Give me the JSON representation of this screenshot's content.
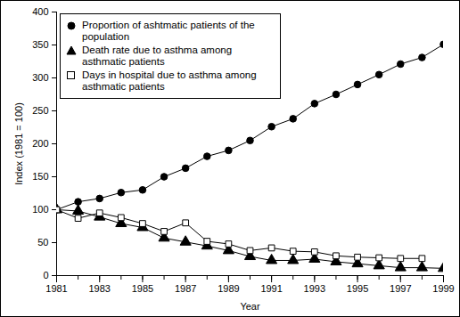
{
  "chart_data": {
    "type": "line",
    "x_label": "Year",
    "y_label": "Index (1981 = 100)",
    "x": [
      1981,
      1982,
      1983,
      1984,
      1985,
      1986,
      1987,
      1988,
      1989,
      1990,
      1991,
      1992,
      1993,
      1994,
      1995,
      1996,
      1997,
      1998,
      1999
    ],
    "xlim": [
      1981,
      1999
    ],
    "xticks": [
      1981,
      1983,
      1985,
      1987,
      1989,
      1991,
      1993,
      1995,
      1997,
      1999
    ],
    "ylim": [
      0,
      400
    ],
    "yticks": [
      0,
      50,
      100,
      150,
      200,
      250,
      300,
      350,
      400
    ],
    "grid": false,
    "legend": "top-left",
    "series": [
      {
        "name": "Proportion of ashtmatic patients of the population",
        "color": "#000000",
        "marker": "filled-circle",
        "values": [
          100,
          112,
          117,
          126,
          130,
          150,
          163,
          181,
          190,
          205,
          226,
          238,
          261,
          275,
          290,
          305,
          321,
          331,
          351
        ]
      },
      {
        "name": "Death rate due to asthma among asthmatic patients",
        "color": "#000000",
        "marker": "filled-triangle",
        "values": [
          100,
          98,
          89,
          79,
          73,
          57,
          51,
          45,
          38,
          29,
          23,
          23,
          25,
          21,
          18,
          15,
          12,
          12,
          11
        ]
      },
      {
        "name": "Days in hospital due to asthma among asthmatic patients",
        "color": "#000000",
        "marker": "open-square",
        "values": [
          100,
          87,
          95,
          88,
          79,
          67,
          80,
          52,
          48,
          38,
          42,
          37,
          36,
          30,
          28,
          27,
          26,
          26,
          null
        ]
      }
    ]
  }
}
